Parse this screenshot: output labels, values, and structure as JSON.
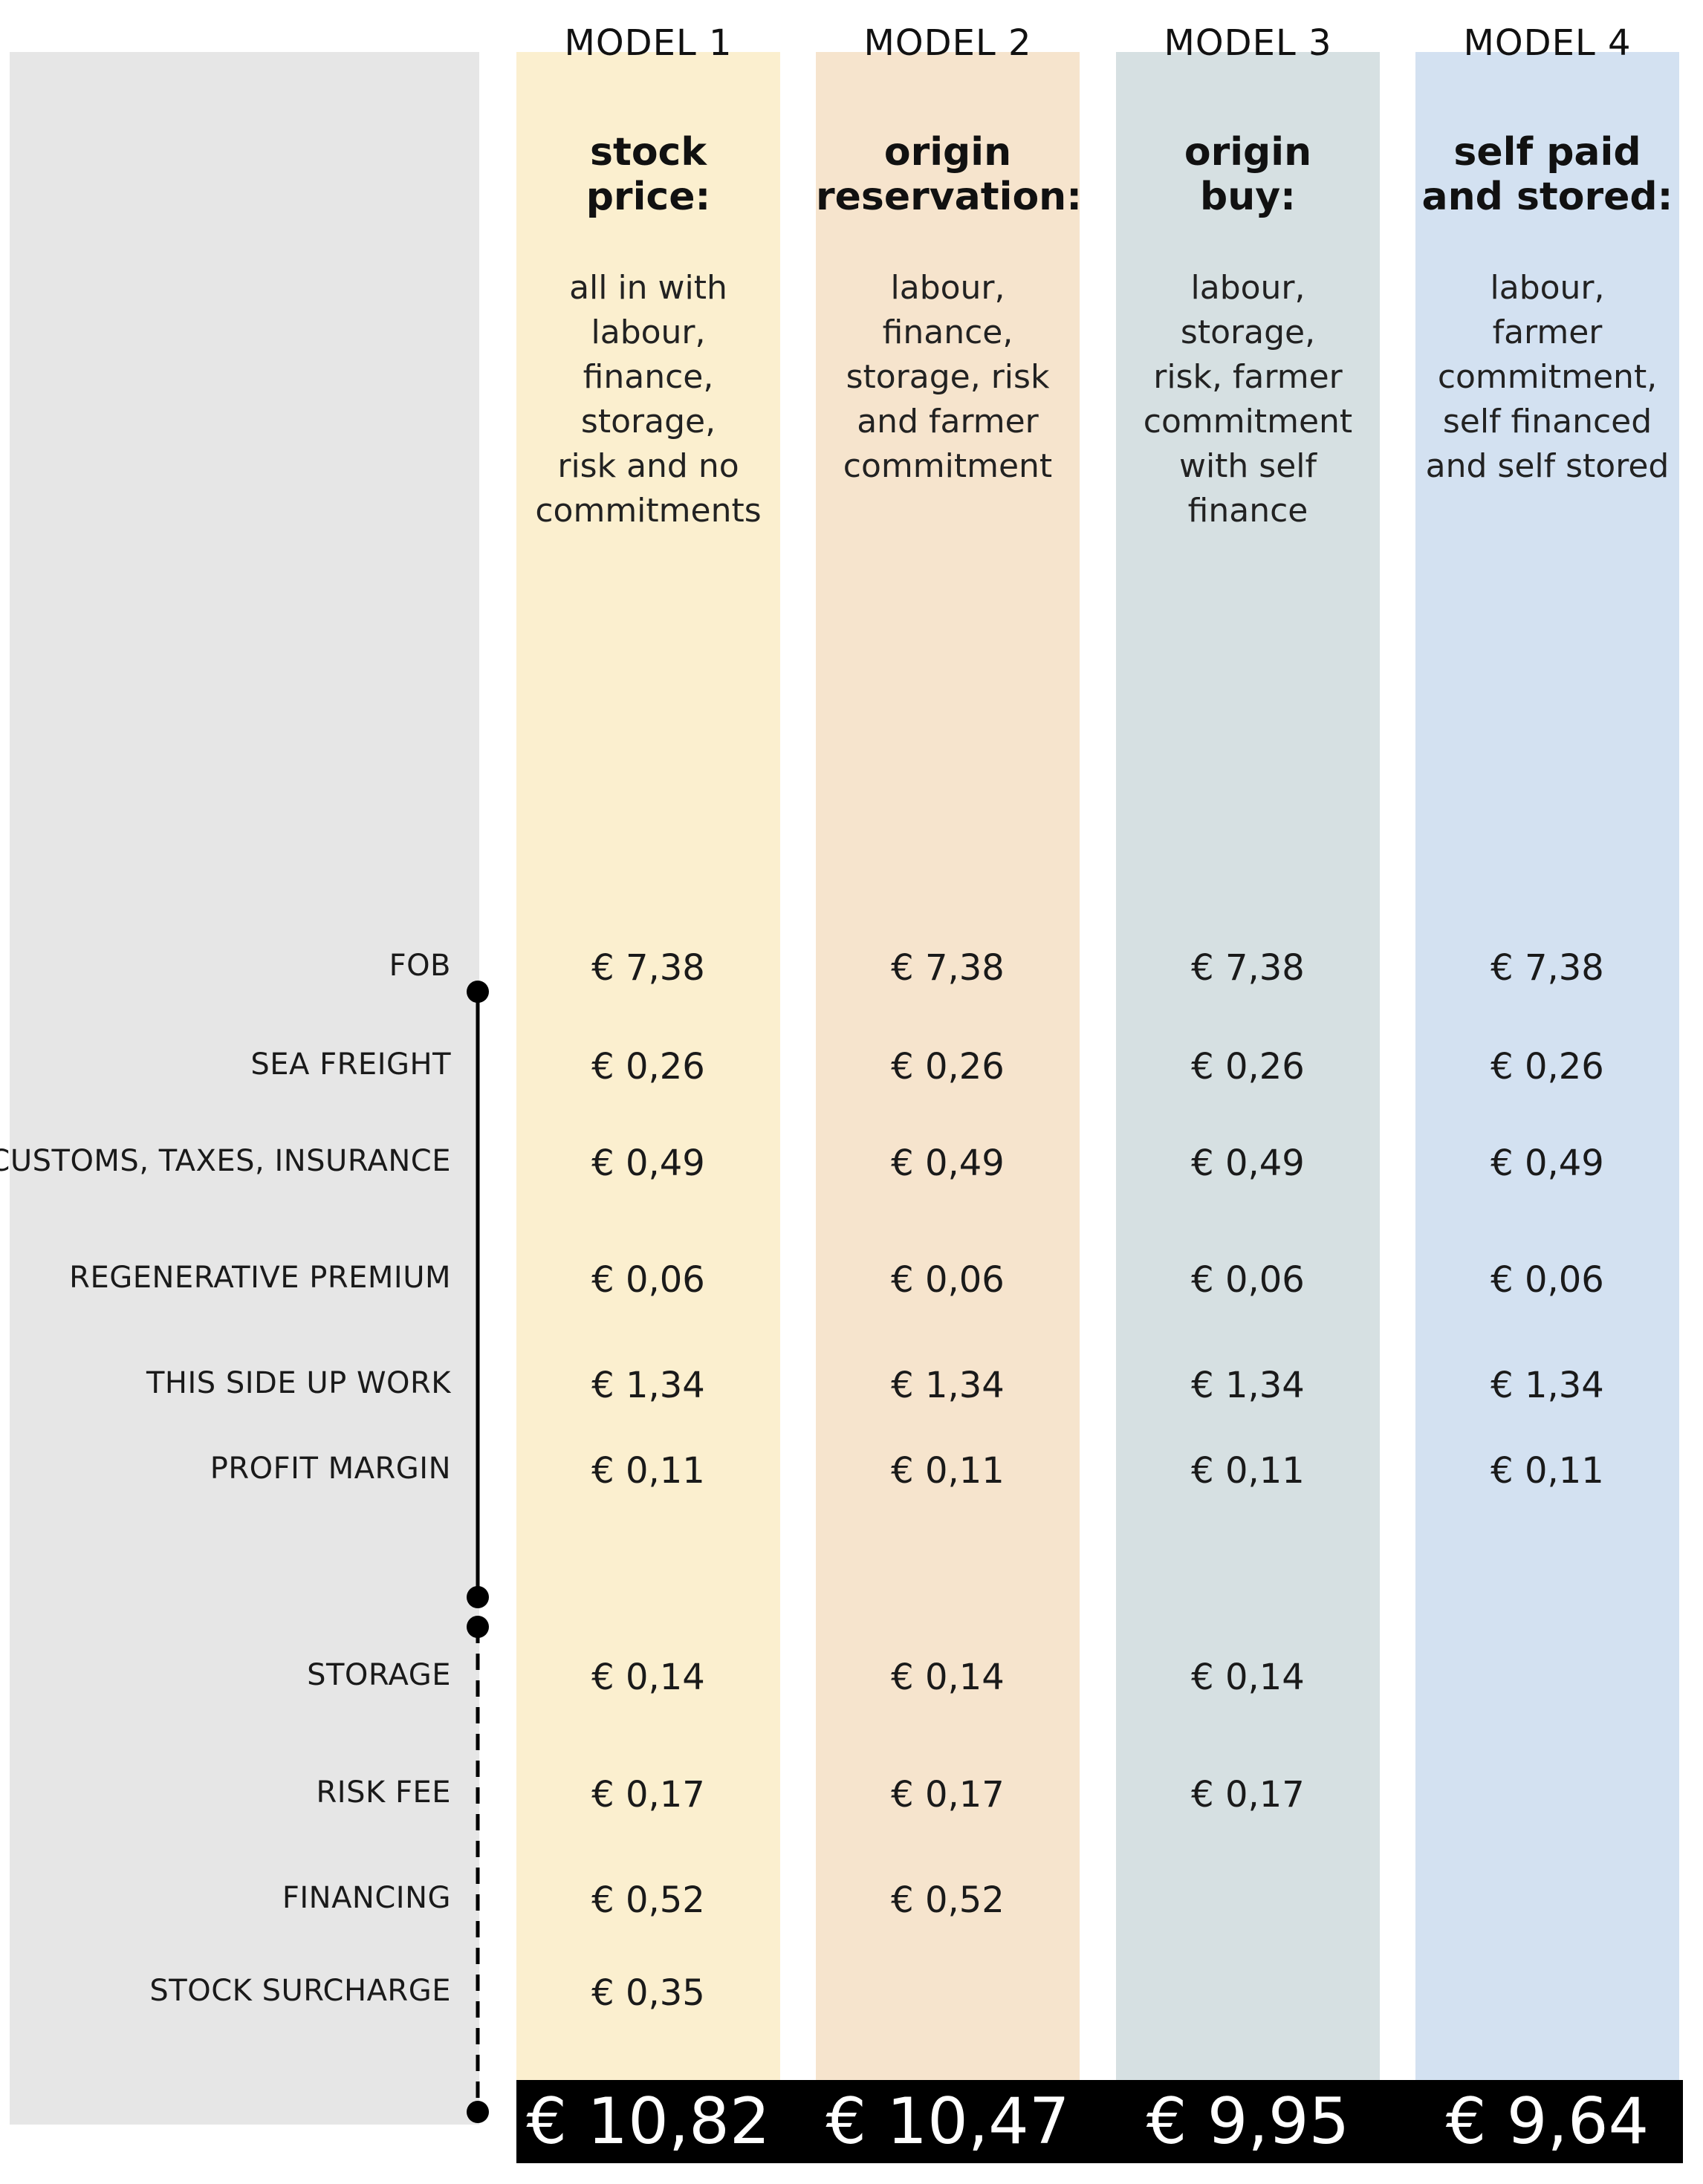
{
  "chart_data": {
    "type": "table",
    "models": [
      {
        "header": "MODEL 1",
        "title_lines": [
          "stock",
          "price:"
        ],
        "description_lines": [
          "all in with",
          "labour,",
          "finance,",
          "storage,",
          "risk and no",
          "commitments"
        ],
        "values": [
          "€ 7,38",
          "€ 0,26",
          "€ 0,49",
          "€ 0,06",
          "€ 1,34",
          "€ 0,11",
          "€ 0,14",
          "€ 0,17",
          "€ 0,52",
          "€ 0,35"
        ],
        "total": "€ 10,82",
        "color": "#fbefcf"
      },
      {
        "header": "MODEL 2",
        "title_lines": [
          "origin",
          "reservation:"
        ],
        "description_lines": [
          "labour,",
          "finance,",
          "storage, risk",
          "and farmer",
          "commitment"
        ],
        "values": [
          "€ 7,38",
          "€ 0,26",
          "€ 0,49",
          "€ 0,06",
          "€ 1,34",
          "€ 0,11",
          "€ 0,14",
          "€ 0,17",
          "€ 0,52",
          ""
        ],
        "total": "€ 10,47",
        "color": "#f6e4cd"
      },
      {
        "header": "MODEL 3",
        "title_lines": [
          "origin",
          "buy:"
        ],
        "description_lines": [
          "labour,",
          "storage,",
          "risk, farmer",
          "commitment",
          "with self",
          "finance"
        ],
        "values": [
          "€ 7,38",
          "€ 0,26",
          "€ 0,49",
          "€ 0,06",
          "€ 1,34",
          "€ 0,11",
          "€ 0,14",
          "€ 0,17",
          "",
          ""
        ],
        "total": "€ 9,95",
        "color": "#d6e0e2"
      },
      {
        "header": "MODEL 4",
        "title_lines": [
          "self paid",
          "and stored:"
        ],
        "description_lines": [
          "labour,",
          "farmer",
          "commitment,",
          "self financed",
          "and self stored"
        ],
        "values": [
          "€ 7,38",
          "€ 0,26",
          "€ 0,49",
          "€ 0,06",
          "€ 1,34",
          "€ 0,11",
          "",
          "",
          "",
          ""
        ],
        "total": "€ 9,64",
        "color": "#d3e1f1"
      }
    ],
    "row_labels": [
      "FOB",
      "SEA FREIGHT",
      "CUSTOMS, TAXES, INSURANCE",
      "REGENERATIVE PREMIUM",
      "THIS SIDE UP WORK",
      "PROFIT MARGIN",
      "STORAGE",
      "RISK FEE",
      "FINANCING",
      "STOCK SURCHARGE"
    ],
    "colors": {
      "label_panel": "#e6e6e6",
      "total_bg": "#000000",
      "total_text": "#ffffff",
      "connector": "#000000"
    }
  }
}
